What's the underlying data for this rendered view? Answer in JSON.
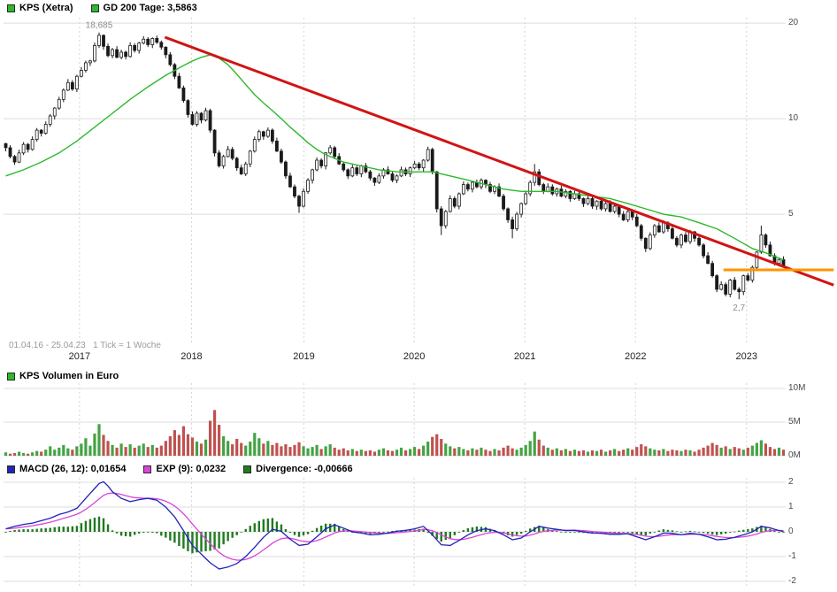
{
  "price_legend": {
    "items": [
      {
        "label": "KPS (Xetra)",
        "color": "#2db92d"
      },
      {
        "label": "GD 200 Tage: 3,5863",
        "color": "#2db92d"
      }
    ]
  },
  "volume_legend": {
    "items": [
      {
        "label": "KPS Volumen in Euro",
        "color": "#2db92d"
      }
    ]
  },
  "macd_legend": {
    "items": [
      {
        "label": "MACD (26, 12): 0,01654",
        "color": "#2222bb"
      },
      {
        "label": "EXP (9): 0,0232",
        "color": "#d944d9"
      },
      {
        "label": "Divergence: -0,00666",
        "color": "#207a20"
      }
    ]
  },
  "footer": {
    "date_range": "01.04.16 - 25.04.23",
    "tick_note": "1 Tick = 1 Woche"
  },
  "chart_data": {
    "type": "candlestick",
    "instrument": "KPS (Xetra)",
    "period": {
      "start": "01.04.16",
      "end": "25.04.23",
      "tick": "1 Woche"
    },
    "colors": {
      "candle": "#1a1a1a",
      "ma": "#2db92d",
      "trend": "#d11414",
      "hline": "#ff9500",
      "vol_up": "#44a344",
      "vol_down": "#bf5250",
      "macd": "#2222bb",
      "exp": "#d944d9",
      "div": "#207a20",
      "grid": "#dcdcdc",
      "grid_dash": "#d4d4d4"
    },
    "x_axis": {
      "n": 176,
      "year_ticks": [
        {
          "label": "2017",
          "i": 16.6
        },
        {
          "label": "2018",
          "i": 41.8
        },
        {
          "label": "2019",
          "i": 67.1
        },
        {
          "label": "2020",
          "i": 91.9
        },
        {
          "label": "2021",
          "i": 116.8
        },
        {
          "label": "2022",
          "i": 141.7
        },
        {
          "label": "2023",
          "i": 166.7
        }
      ]
    },
    "price_panel": {
      "scale": "log",
      "ylim": [
        1.96,
        20.8
      ],
      "yticks": [
        {
          "value": 20,
          "label": "20"
        },
        {
          "value": 10,
          "label": "10"
        },
        {
          "value": 5,
          "label": "5"
        }
      ],
      "closes": [
        8.1,
        7.6,
        7.3,
        7.8,
        8.3,
        8.0,
        8.6,
        9.2,
        9.0,
        9.6,
        10.2,
        10.8,
        11.5,
        12.3,
        13.0,
        12.4,
        13.6,
        14.2,
        15.0,
        15.2,
        17.0,
        18.3,
        16.9,
        15.8,
        16.5,
        15.6,
        16.2,
        15.7,
        17.0,
        16.4,
        17.3,
        17.8,
        17.1,
        17.9,
        17.4,
        16.8,
        15.9,
        14.8,
        13.6,
        12.5,
        11.4,
        10.3,
        9.6,
        10.4,
        9.9,
        10.6,
        9.2,
        7.8,
        7.1,
        7.6,
        8.0,
        7.5,
        7.0,
        6.7,
        7.2,
        7.9,
        8.6,
        9.1,
        8.8,
        9.2,
        8.5,
        7.9,
        7.3,
        6.6,
        6.1,
        5.7,
        5.3,
        5.9,
        6.4,
        6.9,
        7.4,
        7.1,
        7.8,
        8.1,
        7.6,
        7.2,
        6.9,
        6.6,
        7.0,
        6.7,
        7.1,
        6.8,
        6.5,
        6.3,
        6.6,
        6.9,
        6.7,
        6.4,
        6.6,
        6.9,
        6.7,
        7.0,
        7.2,
        7.0,
        7.4,
        8.0,
        6.8,
        5.2,
        4.6,
        5.1,
        5.6,
        5.3,
        5.8,
        6.2,
        6.0,
        6.3,
        6.1,
        6.4,
        6.2,
        5.9,
        6.1,
        5.7,
        5.2,
        4.8,
        4.5,
        5.0,
        5.4,
        5.8,
        6.3,
        6.8,
        6.2,
        5.9,
        6.1,
        5.8,
        6.0,
        5.7,
        5.9,
        5.6,
        5.8,
        5.6,
        5.4,
        5.6,
        5.3,
        5.5,
        5.2,
        5.4,
        5.1,
        5.3,
        5.0,
        4.8,
        5.1,
        4.9,
        4.6,
        4.2,
        3.9,
        4.3,
        4.6,
        4.4,
        4.7,
        4.5,
        4.2,
        4.0,
        4.3,
        4.1,
        4.4,
        4.2,
        4.0,
        3.7,
        3.5,
        3.2,
        2.9,
        3.0,
        2.8,
        3.1,
        2.9,
        2.85,
        3.2,
        3.1,
        3.4,
        3.8,
        4.3,
        4.0,
        3.7,
        3.5,
        3.6,
        3.45
      ],
      "wick_overrides": {
        "21": {
          "high": 18.685
        },
        "66": {
          "low": 5.05
        },
        "98": {
          "low": 4.3
        },
        "114": {
          "low": 4.2
        },
        "119": {
          "high": 7.2
        },
        "165": {
          "low": 2.7
        },
        "170": {
          "high": 4.6
        }
      },
      "ma200": {
        "label": "GD 200 Tage",
        "value": 3.5863,
        "points": [
          [
            0,
            6.6
          ],
          [
            4,
            6.9
          ],
          [
            8,
            7.3
          ],
          [
            12,
            7.8
          ],
          [
            16,
            8.5
          ],
          [
            20,
            9.4
          ],
          [
            24,
            10.4
          ],
          [
            28,
            11.5
          ],
          [
            32,
            12.6
          ],
          [
            36,
            13.7
          ],
          [
            40,
            14.7
          ],
          [
            42,
            15.2
          ],
          [
            44,
            15.6
          ],
          [
            46,
            15.9
          ],
          [
            48,
            15.5
          ],
          [
            50,
            14.8
          ],
          [
            52,
            13.8
          ],
          [
            54,
            12.8
          ],
          [
            56,
            11.9
          ],
          [
            58,
            11.2
          ],
          [
            60,
            10.6
          ],
          [
            62,
            10.0
          ],
          [
            64,
            9.4
          ],
          [
            66,
            8.9
          ],
          [
            68,
            8.4
          ],
          [
            70,
            8.0
          ],
          [
            72,
            7.7
          ],
          [
            74,
            7.5
          ],
          [
            76,
            7.3
          ],
          [
            78,
            7.2
          ],
          [
            80,
            7.1
          ],
          [
            84,
            6.9
          ],
          [
            88,
            6.8
          ],
          [
            92,
            6.8
          ],
          [
            96,
            6.8
          ],
          [
            100,
            6.6
          ],
          [
            104,
            6.4
          ],
          [
            108,
            6.2
          ],
          [
            112,
            6.0
          ],
          [
            116,
            5.9
          ],
          [
            124,
            5.9
          ],
          [
            128,
            5.8
          ],
          [
            132,
            5.7
          ],
          [
            136,
            5.6
          ],
          [
            140,
            5.4
          ],
          [
            144,
            5.2
          ],
          [
            148,
            5.0
          ],
          [
            152,
            4.9
          ],
          [
            156,
            4.7
          ],
          [
            160,
            4.5
          ],
          [
            164,
            4.2
          ],
          [
            168,
            3.9
          ],
          [
            171,
            3.78
          ],
          [
            175,
            3.59
          ]
        ]
      },
      "trendline": {
        "color": "#d11414",
        "from": {
          "i": 35.8,
          "price": 18.05
        },
        "to": {
          "i": 186.3,
          "price": 2.99
        }
      },
      "hline": {
        "color": "#ff9500",
        "price": 3.34,
        "from_i": 161.5,
        "to_i": 186.3
      },
      "annotations": [
        {
          "text": "18,685",
          "i": 21,
          "price": 18.685,
          "position": "above"
        },
        {
          "text": "2,7",
          "i": 165,
          "price": 2.7,
          "position": "below"
        }
      ]
    },
    "volume_panel": {
      "unit": "M",
      "ylim": [
        0,
        10.66
      ],
      "yticks": [
        {
          "value": 10,
          "label": "10M"
        },
        {
          "value": 5,
          "label": "5M"
        },
        {
          "value": 0,
          "label": "0M"
        }
      ],
      "values": [
        0.5,
        0.3,
        0.4,
        0.6,
        0.4,
        0.3,
        0.5,
        0.7,
        0.6,
        0.9,
        1.4,
        0.9,
        1.2,
        1.6,
        1.1,
        0.9,
        1.4,
        1.8,
        2.6,
        1.5,
        3.3,
        4.7,
        3.1,
        2.2,
        1.6,
        1.2,
        1.8,
        1.3,
        1.7,
        1.2,
        1.5,
        1.8,
        1.3,
        1.6,
        1.2,
        1.5,
        2.2,
        2.9,
        3.8,
        3.1,
        4.4,
        3.2,
        2.7,
        2.1,
        1.8,
        2.4,
        5.2,
        6.8,
        4.6,
        2.9,
        2.2,
        1.7,
        2.5,
        1.9,
        1.5,
        2.1,
        3.4,
        2.6,
        1.8,
        2.2,
        1.6,
        1.9,
        1.4,
        1.7,
        1.3,
        1.6,
        2.0,
        1.4,
        1.1,
        1.3,
        1.6,
        1.0,
        1.4,
        1.7,
        1.2,
        0.9,
        1.1,
        0.8,
        1.0,
        0.7,
        0.9,
        0.7,
        0.8,
        0.6,
        0.9,
        1.1,
        0.8,
        0.7,
        0.9,
        1.2,
        0.8,
        1.0,
        1.3,
        1.0,
        1.5,
        2.1,
        2.8,
        3.2,
        2.5,
        1.8,
        1.4,
        1.1,
        1.3,
        1.0,
        0.8,
        1.1,
        0.9,
        1.2,
        0.9,
        0.7,
        1.0,
        0.8,
        1.2,
        1.5,
        1.1,
        0.9,
        1.2,
        1.6,
        2.2,
        3.6,
        2.4,
        1.5,
        1.2,
        0.9,
        1.1,
        0.8,
        1.0,
        0.7,
        0.9,
        0.7,
        0.8,
        0.6,
        0.8,
        0.7,
        0.9,
        0.6,
        0.8,
        1.0,
        0.7,
        0.9,
        1.1,
        0.9,
        1.3,
        1.7,
        1.4,
        1.1,
        0.9,
        0.8,
        1.0,
        0.7,
        0.9,
        0.8,
        0.7,
        0.9,
        0.8,
        0.6,
        0.9,
        1.2,
        1.5,
        1.9,
        1.6,
        1.2,
        1.4,
        1.0,
        1.3,
        1.1,
        0.9,
        1.2,
        1.5,
        1.9,
        2.3,
        1.8,
        1.3,
        1.0,
        1.2,
        0.9
      ]
    },
    "macd_panel": {
      "ylim": [
        -2.18,
        2.18
      ],
      "yticks": [
        {
          "value": 2,
          "label": "2"
        },
        {
          "value": 1,
          "label": "1"
        },
        {
          "value": 0,
          "label": "0"
        },
        {
          "value": -1,
          "label": "-1"
        },
        {
          "value": -2,
          "label": "-2"
        }
      ],
      "exp_period": 9,
      "macd_value": 0.01654,
      "exp_value": 0.0232,
      "divergence_value": -0.00666,
      "macd_points": [
        [
          0,
          0.12
        ],
        [
          2,
          0.22
        ],
        [
          4,
          0.3
        ],
        [
          6,
          0.35
        ],
        [
          8,
          0.45
        ],
        [
          10,
          0.55
        ],
        [
          12,
          0.7
        ],
        [
          14,
          0.8
        ],
        [
          16,
          0.95
        ],
        [
          18,
          1.35
        ],
        [
          20,
          1.75
        ],
        [
          21,
          1.95
        ],
        [
          22,
          2.02
        ],
        [
          23,
          1.85
        ],
        [
          24,
          1.62
        ],
        [
          26,
          1.35
        ],
        [
          28,
          1.22
        ],
        [
          30,
          1.3
        ],
        [
          32,
          1.35
        ],
        [
          34,
          1.28
        ],
        [
          36,
          1.0
        ],
        [
          38,
          0.6
        ],
        [
          40,
          0.05
        ],
        [
          42,
          -0.55
        ],
        [
          44,
          -0.9
        ],
        [
          46,
          -1.25
        ],
        [
          48,
          -1.5
        ],
        [
          50,
          -1.42
        ],
        [
          52,
          -1.28
        ],
        [
          54,
          -1.0
        ],
        [
          56,
          -0.62
        ],
        [
          58,
          -0.22
        ],
        [
          60,
          0.1
        ],
        [
          62,
          0.02
        ],
        [
          64,
          -0.3
        ],
        [
          66,
          -0.55
        ],
        [
          68,
          -0.5
        ],
        [
          70,
          -0.2
        ],
        [
          72,
          0.12
        ],
        [
          74,
          0.28
        ],
        [
          76,
          0.15
        ],
        [
          78,
          0.0
        ],
        [
          80,
          -0.05
        ],
        [
          82,
          -0.12
        ],
        [
          84,
          -0.1
        ],
        [
          86,
          -0.05
        ],
        [
          88,
          0.02
        ],
        [
          90,
          0.06
        ],
        [
          92,
          0.12
        ],
        [
          94,
          0.22
        ],
        [
          96,
          -0.12
        ],
        [
          98,
          -0.52
        ],
        [
          100,
          -0.55
        ],
        [
          102,
          -0.35
        ],
        [
          104,
          -0.12
        ],
        [
          106,
          0.05
        ],
        [
          108,
          0.12
        ],
        [
          110,
          0.05
        ],
        [
          112,
          -0.12
        ],
        [
          114,
          -0.32
        ],
        [
          116,
          -0.25
        ],
        [
          118,
          0.0
        ],
        [
          120,
          0.22
        ],
        [
          122,
          0.15
        ],
        [
          124,
          0.1
        ],
        [
          126,
          0.05
        ],
        [
          128,
          0.06
        ],
        [
          130,
          0.0
        ],
        [
          132,
          -0.05
        ],
        [
          134,
          -0.06
        ],
        [
          136,
          -0.1
        ],
        [
          138,
          -0.1
        ],
        [
          140,
          -0.08
        ],
        [
          142,
          -0.2
        ],
        [
          144,
          -0.32
        ],
        [
          146,
          -0.2
        ],
        [
          148,
          -0.05
        ],
        [
          150,
          -0.06
        ],
        [
          152,
          -0.12
        ],
        [
          154,
          -0.06
        ],
        [
          156,
          -0.1
        ],
        [
          158,
          -0.2
        ],
        [
          160,
          -0.32
        ],
        [
          162,
          -0.3
        ],
        [
          164,
          -0.22
        ],
        [
          166,
          -0.12
        ],
        [
          168,
          0.0
        ],
        [
          170,
          0.22
        ],
        [
          172,
          0.16
        ],
        [
          174,
          0.05
        ],
        [
          175,
          0.017
        ]
      ]
    }
  }
}
